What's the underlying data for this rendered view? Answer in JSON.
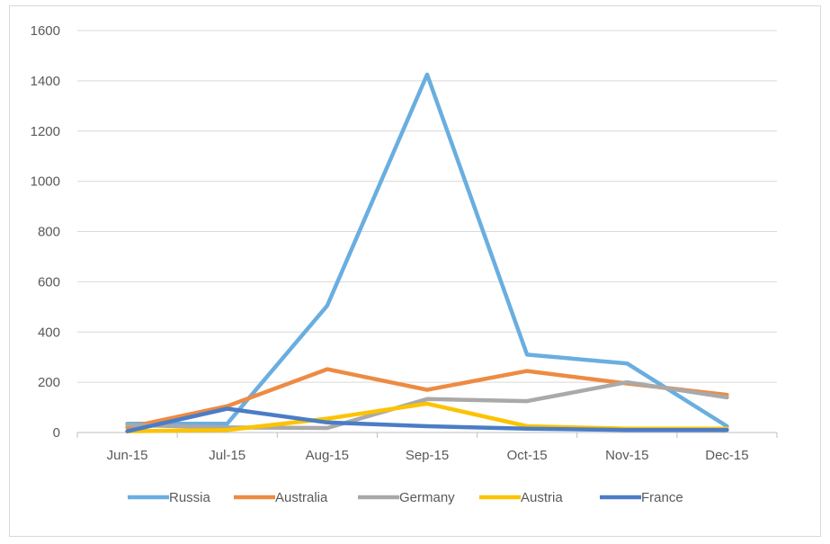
{
  "chart_data": {
    "type": "line",
    "categories": [
      "Jun-15",
      "Jul-15",
      "Aug-15",
      "Sep-15",
      "Oct-15",
      "Nov-15",
      "Dec-15"
    ],
    "ylim": [
      0,
      1600
    ],
    "yticks": [
      0,
      200,
      400,
      600,
      800,
      1000,
      1200,
      1400,
      1600
    ],
    "grid": "horizontal",
    "legend": "bottom",
    "series": [
      {
        "name": "Russia",
        "color": "#6aaee0",
        "values": [
          35,
          35,
          505,
          1425,
          310,
          275,
          25
        ]
      },
      {
        "name": "Australia",
        "color": "#ed8b43",
        "values": [
          20,
          105,
          252,
          170,
          245,
          195,
          150
        ]
      },
      {
        "name": "Germany",
        "color": "#a9a9a9",
        "values": [
          30,
          20,
          18,
          133,
          125,
          200,
          140
        ]
      },
      {
        "name": "Austria",
        "color": "#fcc300",
        "values": [
          5,
          10,
          55,
          115,
          25,
          15,
          15
        ]
      },
      {
        "name": "France",
        "color": "#4b7dc6",
        "values": [
          5,
          95,
          40,
          25,
          15,
          10,
          10
        ]
      }
    ]
  }
}
